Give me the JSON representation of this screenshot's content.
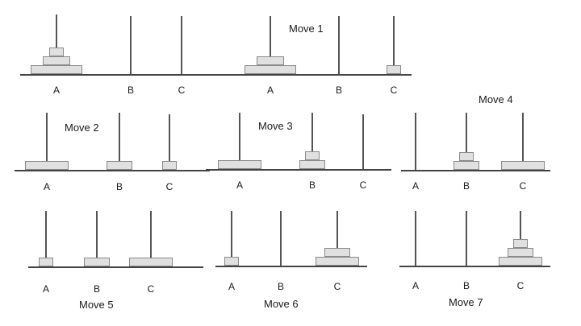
{
  "colors": {
    "disk_fill": "#e0e0e0",
    "disk_border": "#8a8a8a",
    "peg": "#555555",
    "base": "#444444"
  },
  "peg_labels": [
    "A",
    "B",
    "C"
  ],
  "panels": [
    {
      "caption": "",
      "pegs": [
        [
          3,
          2,
          1
        ],
        [],
        []
      ]
    },
    {
      "caption": "Move 1",
      "pegs": [
        [
          3,
          2
        ],
        [],
        [
          1
        ]
      ]
    },
    {
      "caption": "Move 2",
      "pegs": [
        [
          3
        ],
        [
          2
        ],
        [
          1
        ]
      ]
    },
    {
      "caption": "Move 3",
      "pegs": [
        [
          3
        ],
        [
          2,
          1
        ],
        []
      ]
    },
    {
      "caption": "Move 4",
      "pegs": [
        [],
        [
          2,
          1
        ],
        [
          3
        ]
      ]
    },
    {
      "caption": "Move 5",
      "pegs": [
        [
          1
        ],
        [
          2
        ],
        [
          3
        ]
      ]
    },
    {
      "caption": "Move 6",
      "pegs": [
        [
          1
        ],
        [],
        [
          3,
          2
        ]
      ]
    },
    {
      "caption": "Move 7",
      "pegs": [
        [],
        [],
        [
          3,
          2,
          1
        ]
      ]
    }
  ]
}
